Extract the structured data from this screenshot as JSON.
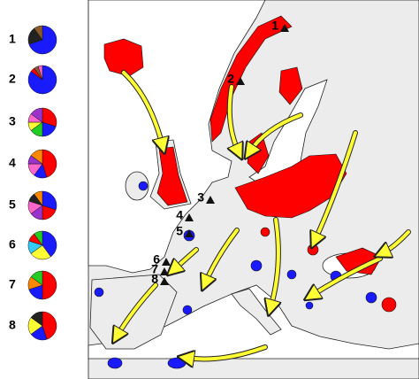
{
  "legend": {
    "pies": [
      {
        "label": "1",
        "slices": [
          {
            "color": "#1a1aff",
            "value": 70
          },
          {
            "color": "#222222",
            "value": 20
          },
          {
            "color": "#8b5a2b",
            "value": 10
          }
        ]
      },
      {
        "label": "2",
        "slices": [
          {
            "color": "#1a1aff",
            "value": 85
          },
          {
            "color": "#ff0000",
            "value": 5
          },
          {
            "color": "#8b5a2b",
            "value": 5
          },
          {
            "color": "#ff66cc",
            "value": 5
          }
        ]
      },
      {
        "label": "3",
        "slices": [
          {
            "color": "#ff0000",
            "value": 30
          },
          {
            "color": "#1a1aff",
            "value": 20
          },
          {
            "color": "#22cc22",
            "value": 15
          },
          {
            "color": "#ffff33",
            "value": 10
          },
          {
            "color": "#ff66cc",
            "value": 10
          },
          {
            "color": "#9933cc",
            "value": 15
          }
        ]
      },
      {
        "label": "4",
        "slices": [
          {
            "color": "#ff0000",
            "value": 45
          },
          {
            "color": "#1a1aff",
            "value": 15
          },
          {
            "color": "#ff66cc",
            "value": 15
          },
          {
            "color": "#9933cc",
            "value": 10
          },
          {
            "color": "#ff8800",
            "value": 15
          }
        ]
      },
      {
        "label": "5",
        "slices": [
          {
            "color": "#1a1aff",
            "value": 30
          },
          {
            "color": "#ff0000",
            "value": 20
          },
          {
            "color": "#9933cc",
            "value": 15
          },
          {
            "color": "#ff66cc",
            "value": 15
          },
          {
            "color": "#222222",
            "value": 10
          },
          {
            "color": "#ff8800",
            "value": 10
          }
        ]
      },
      {
        "label": "6",
        "slices": [
          {
            "color": "#1a1aff",
            "value": 40
          },
          {
            "color": "#ffff33",
            "value": 25
          },
          {
            "color": "#33ccff",
            "value": 15
          },
          {
            "color": "#ff0000",
            "value": 10
          },
          {
            "color": "#22cc22",
            "value": 10
          }
        ]
      },
      {
        "label": "7",
        "slices": [
          {
            "color": "#ff0000",
            "value": 50
          },
          {
            "color": "#1a1aff",
            "value": 20
          },
          {
            "color": "#ff8800",
            "value": 15
          },
          {
            "color": "#22cc22",
            "value": 15
          }
        ]
      },
      {
        "label": "8",
        "slices": [
          {
            "color": "#ff0000",
            "value": 45
          },
          {
            "color": "#1a1aff",
            "value": 20
          },
          {
            "color": "#ffff33",
            "value": 20
          },
          {
            "color": "#222222",
            "value": 15
          }
        ]
      }
    ]
  },
  "sites": [
    {
      "label": "1"
    },
    {
      "label": "2"
    },
    {
      "label": "3"
    },
    {
      "label": "4"
    },
    {
      "label": "5"
    },
    {
      "label": "6"
    },
    {
      "label": "7"
    },
    {
      "label": "8"
    }
  ]
}
